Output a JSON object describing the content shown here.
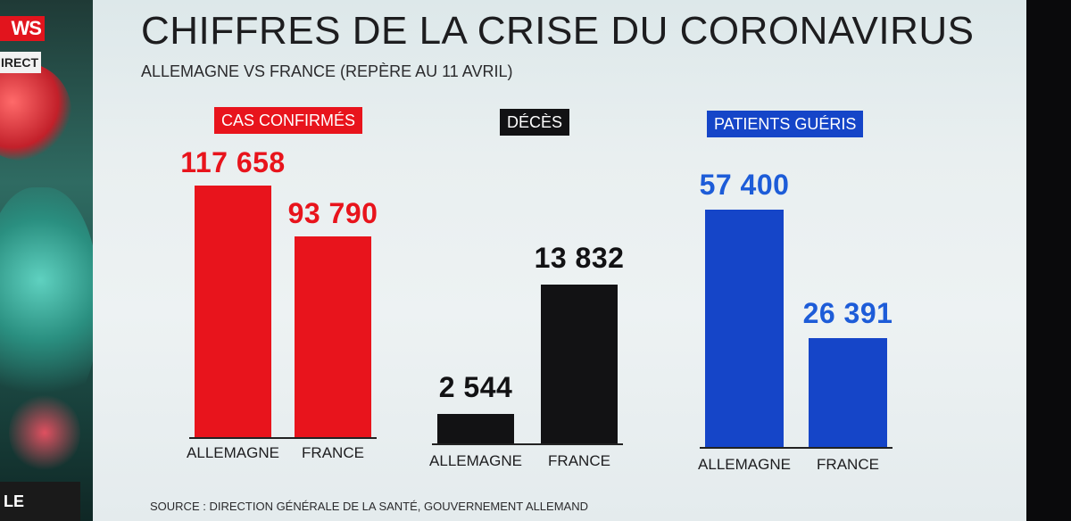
{
  "tv": {
    "logo": "WS",
    "direct": "IRECT",
    "bottom_tag": "LE"
  },
  "header": {
    "title": "CHIFFRES DE LA CRISE DU CORONAVIRUS",
    "subtitle": "ALLEMAGNE VS FRANCE (REPÈRE AU 11 AVRIL)"
  },
  "source": "SOURCE : DIRECTION GÉNÉRALE DE LA SANTÉ, GOUVERNEMENT ALLEMAND",
  "chart_data": [
    {
      "type": "bar",
      "title": "CAS CONFIRMÉS",
      "categories": [
        "ALLEMAGNE",
        "FRANCE"
      ],
      "values": [
        117658,
        93790
      ],
      "value_labels": [
        "117 658",
        "93 790"
      ],
      "color": "#e8141c",
      "label_bg": "#e8141c",
      "value_color": "#e8141c",
      "xlabel": "",
      "ylabel": "",
      "ylim": [
        0,
        117658
      ]
    },
    {
      "type": "bar",
      "title": "DÉCÈS",
      "categories": [
        "ALLEMAGNE",
        "FRANCE"
      ],
      "values": [
        2544,
        13832
      ],
      "value_labels": [
        "2 544",
        "13 832"
      ],
      "color": "#121214",
      "label_bg": "#121214",
      "value_color": "#121214",
      "xlabel": "",
      "ylabel": "",
      "ylim": [
        0,
        13832
      ]
    },
    {
      "type": "bar",
      "title": "PATIENTS GUÉRIS",
      "categories": [
        "ALLEMAGNE",
        "FRANCE"
      ],
      "values": [
        57400,
        26391
      ],
      "value_labels": [
        "57 400",
        "26 391"
      ],
      "color": "#1545c8",
      "label_bg": "#1545c8",
      "value_color": "#1d5cd8",
      "xlabel": "",
      "ylabel": "",
      "ylim": [
        0,
        57400
      ]
    }
  ]
}
